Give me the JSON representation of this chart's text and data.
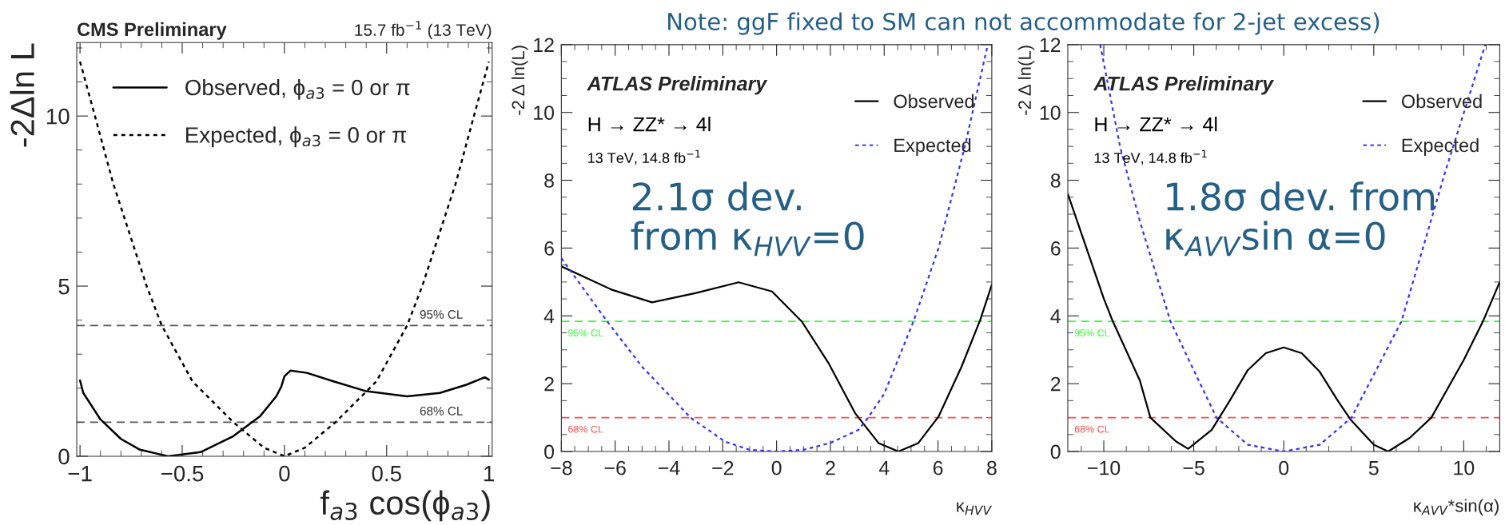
{
  "chart_data": [
    {
      "type": "line",
      "title": "CMS Preliminary",
      "xlabel": "f$_{a3}$ cos(ϕ$_{a3}$)",
      "ylabel": "-2Δln L",
      "annotations": [
        "15.7 fb$^{−1}$ (13 TeV)"
      ],
      "xlim": [
        -1.016,
        1.016
      ],
      "ylim": [
        0,
        12.16
      ],
      "xticks": [
        {
          "value": -1,
          "label": "−1"
        },
        {
          "value": -0.5,
          "label": "−0.5"
        },
        0,
        0.5,
        1
      ],
      "yticks": [
        0,
        5,
        10
      ],
      "legend": "top left",
      "grid": false,
      "series": [
        {
          "name": "Observed, ϕ$_{a3}$ = 0 or π",
          "color": "#000000",
          "line_style": "solid",
          "x": [
            -1,
            -0.984,
            -0.9,
            -0.8,
            -0.71,
            -0.57,
            -0.41,
            -0.25,
            -0.12,
            -0.04,
            -0.015,
            0.0,
            0.03,
            0.11,
            0.24,
            0.4,
            0.6,
            0.76,
            0.89,
            0.98,
            1.0
          ],
          "values": [
            2.23,
            1.86,
            1.08,
            0.51,
            0.2,
            0,
            0.12,
            0.59,
            1.17,
            1.76,
            2.05,
            2.35,
            2.52,
            2.45,
            2.2,
            1.91,
            1.76,
            1.86,
            2.1,
            2.32,
            2.25
          ]
        },
        {
          "name": "Expected, ϕ$_{a3}$ = 0 or π",
          "color": "#000000",
          "line_style": "dotted",
          "x": [
            -1,
            -0.927,
            -0.837,
            -0.674,
            -0.6,
            -0.45,
            -0.25,
            -0.1,
            0,
            0.1,
            0.25,
            0.45,
            0.6,
            0.674,
            0.837,
            0.927,
            1
          ],
          "values": [
            11.6,
            10,
            8,
            5,
            3.84,
            2.2,
            1.0,
            0.25,
            0,
            0.25,
            1.0,
            2.2,
            3.84,
            5,
            8,
            10,
            11.6
          ]
        }
      ],
      "ref_lines": [
        {
          "axis": "y",
          "value": 3.84,
          "label": "95% CL",
          "color": "#555555",
          "line_style": "dashed"
        },
        {
          "axis": "y",
          "value": 1.0,
          "label": "68% CL",
          "color": "#555555",
          "line_style": "dashed"
        }
      ]
    },
    {
      "type": "line",
      "title": "ATLAS Preliminary",
      "xlabel": "κ$_{HVV}$",
      "ylabel": "-2 Δ ln(L)",
      "annotations": [
        "H → ZZ* → 4l",
        "13 TeV, 14.8 fb$^{−1}$",
        "2.1σ dev.\nfrom κ$_{HVV}$=0",
        "Note: ggF fixed to SM can not accommodate for 2-jet excess)"
      ],
      "xlim": [
        -8,
        8
      ],
      "ylim": [
        0,
        12
      ],
      "xticks": [
        {
          "value": -8,
          "label": "−8"
        },
        {
          "value": -6,
          "label": "−6"
        },
        {
          "value": -4,
          "label": "−4"
        },
        {
          "value": -2,
          "label": "−2"
        },
        0,
        2,
        4,
        6,
        8
      ],
      "yticks": [
        0,
        2,
        4,
        6,
        8,
        10,
        12
      ],
      "legend": "top right",
      "grid": false,
      "series": [
        {
          "name": "Observed",
          "color": "#000000",
          "line_style": "solid",
          "x": [
            -8,
            -6.12,
            -4.63,
            -3.02,
            -1.41,
            -0.17,
            0.94,
            1.93,
            2.92,
            3.79,
            4.53,
            5.27,
            6.02,
            6.88,
            7.57,
            8
          ],
          "values": [
            5.46,
            4.77,
            4.4,
            4.67,
            4.99,
            4.72,
            3.83,
            2.61,
            1.13,
            0.25,
            0,
            0.25,
            1.03,
            2.51,
            3.88,
            4.92
          ]
        },
        {
          "name": "Expected",
          "color": "#3333ff",
          "line_style": "dotted",
          "x": [
            -8,
            -6.3,
            -5,
            -3.2,
            -1.91,
            -1,
            0,
            1,
            1.99,
            3.05,
            3.4,
            4,
            5.09,
            6.02,
            7.0,
            7.85
          ],
          "values": [
            5.7,
            3.84,
            2.5,
            1.0,
            0.29,
            0.05,
            0,
            0.05,
            0.25,
            0.64,
            1.0,
            1.7,
            3.84,
            6.0,
            9.0,
            12
          ]
        }
      ],
      "ref_lines": [
        {
          "axis": "y",
          "value": 3.84,
          "label": "95% CL",
          "color": "#33ff33",
          "line_style": "dashed"
        },
        {
          "axis": "y",
          "value": 1.0,
          "label": "68% CL",
          "color": "#ff4d4d",
          "line_style": "dashed"
        }
      ]
    },
    {
      "type": "line",
      "title": "ATLAS Preliminary",
      "xlabel": "κ$_{AVV}$*sin(α)",
      "ylabel": "-2 Δ ln(L)",
      "annotations": [
        "H → ZZ* → 4l",
        "13 TeV, 14.8 fb$^{−1}$",
        "1.8σ dev. from\nκ$_{AVV}$sin α=0"
      ],
      "xlim": [
        -12,
        12
      ],
      "ylim": [
        0,
        12
      ],
      "xticks": [
        {
          "value": -10,
          "label": "−10"
        },
        {
          "value": -5,
          "label": "−5"
        },
        0,
        5,
        10
      ],
      "yticks": [
        0,
        2,
        4,
        6,
        8,
        10,
        12
      ],
      "legend": "top right",
      "grid": false,
      "series": [
        {
          "name": "Observed",
          "color": "#000000",
          "line_style": "solid",
          "x": [
            -12,
            -10,
            -9.5,
            -8,
            -7.41,
            -6,
            -5.31,
            -4,
            -3,
            -2,
            -1,
            0,
            1,
            2,
            3,
            3.7,
            5,
            5.8,
            7,
            8.2,
            10,
            11.07,
            12
          ],
          "values": [
            7.6,
            4.51,
            3.84,
            2.1,
            1.0,
            0.3,
            0.08,
            0.64,
            1.5,
            2.4,
            2.9,
            3.07,
            2.9,
            2.35,
            1.5,
            0.95,
            0.2,
            0,
            0.4,
            1.0,
            2.7,
            3.84,
            5.0
          ]
        },
        {
          "name": "Expected",
          "color": "#3333ff",
          "line_style": "dotted",
          "x": [
            -10.2,
            -9.1,
            -8,
            -6.3,
            -3.74,
            -2,
            0,
            2,
            3.76,
            6.54,
            9,
            11.2
          ],
          "values": [
            12,
            9,
            6.8,
            3.84,
            1.0,
            0.2,
            0,
            0.2,
            1.0,
            3.84,
            8.3,
            12
          ]
        }
      ],
      "ref_lines": [
        {
          "axis": "y",
          "value": 3.84,
          "label": "95% CL",
          "color": "#33ff33",
          "line_style": "dashed"
        },
        {
          "axis": "y",
          "value": 1.0,
          "label": "68% CL",
          "color": "#ff4d4d",
          "line_style": "dashed"
        }
      ]
    }
  ]
}
